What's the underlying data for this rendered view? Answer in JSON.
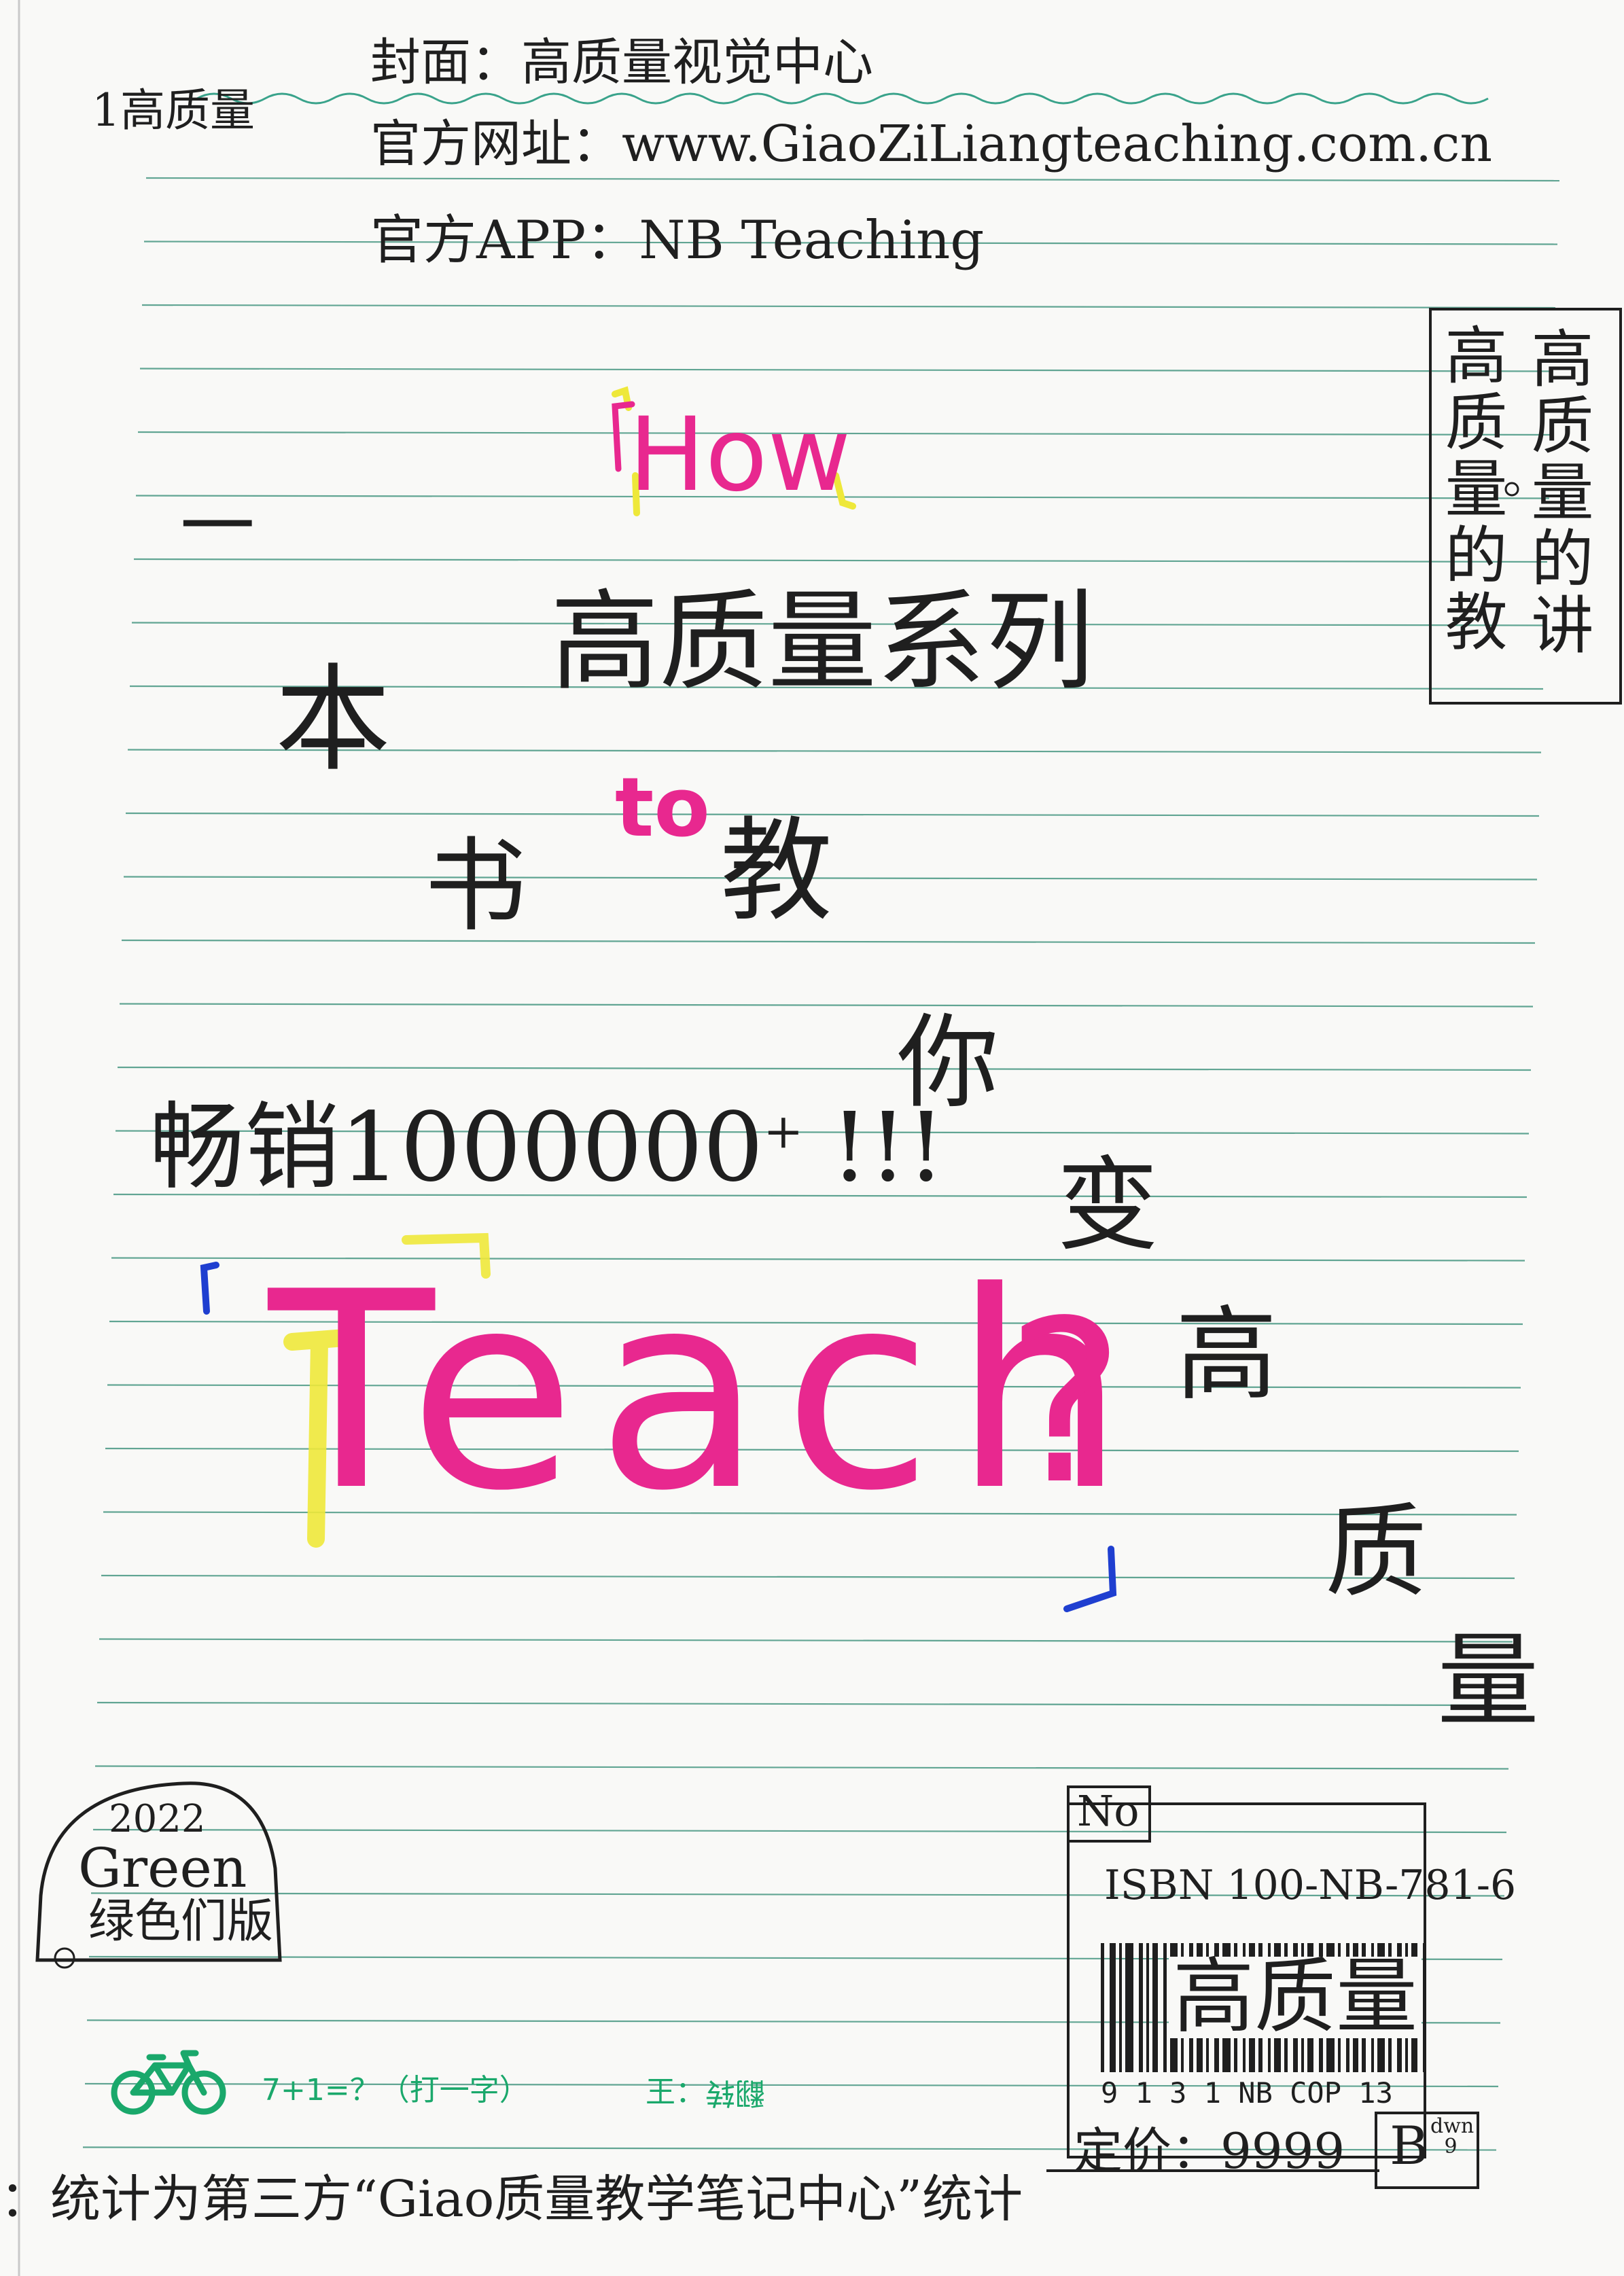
{
  "header": {
    "corner_mark": "1高质量",
    "cover_line": "封面：高质量视觉中心",
    "website_line": "官方网址：www.GiaoZiLiangteaching.com.cn",
    "app_line": "官方APP：NB Teaching"
  },
  "side_box": {
    "col_right": "高质量的讲",
    "col_left": "高质量的教"
  },
  "title": {
    "how": "How",
    "dash": "一",
    "ben": "本",
    "series": "高质量系列",
    "to": "to",
    "shu": "书",
    "jiao": "教",
    "ni": "你",
    "bian": "变",
    "gao": "高",
    "zhi": "质",
    "liang": "量",
    "sales": "畅销1000000",
    "sales_plus": "+",
    "sales_bang": "!!!",
    "teach": "Teach",
    "question": "?",
    "bracket_open": "「",
    "bracket_close": "」"
  },
  "edition_badge": {
    "year": "2022",
    "word": "Green",
    "label": "绿色们版"
  },
  "book_info": {
    "no": "No",
    "isbn": "ISBN 100-NB-781-6",
    "barcode_text": "高质量",
    "barcode_digits": "9 1 3   1 NB COP 13",
    "price": "定价：9999",
    "grade": "B",
    "grade_small": "dwn 9"
  },
  "footer": {
    "riddle": "7+1=？（打一字）",
    "answer_label": "王：",
    "answer": "翻转",
    "stat_note": "：统计为第三方“Giao质量教学笔记中心”统计"
  },
  "colors": {
    "pink": "#e8288f",
    "yellow": "#eee83a",
    "blue": "#1f3fd0",
    "green": "#1aa86b",
    "rule_line": "#2f8a72",
    "wave_line": "#3aa38b"
  },
  "icons": [
    "bicycle-icon"
  ]
}
